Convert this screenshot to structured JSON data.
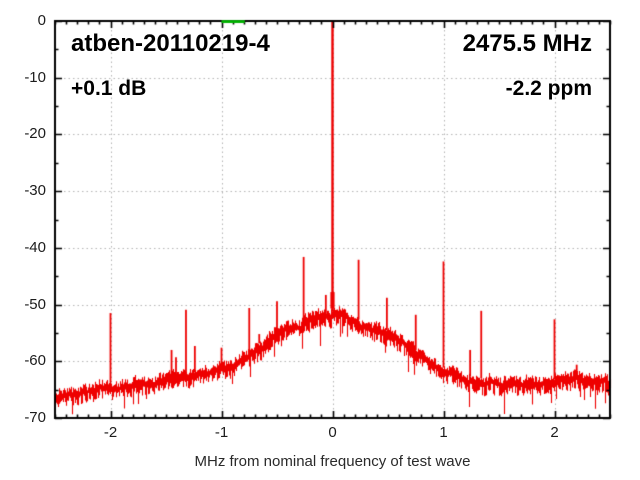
{
  "header": {
    "device_id": "atben-20110219-4",
    "frequency": "2475.5 MHz",
    "level_offset": "+0.1 dB",
    "ppm_offset": "-2.2 ppm"
  },
  "chart_data": {
    "type": "line",
    "title": "atben-20110219-4",
    "subtitle_right": "2475.5 MHz",
    "annotation_left": "+0.1 dB",
    "annotation_right": "-2.2 ppm",
    "xlabel": "MHz from nominal frequency of test wave",
    "ylabel": "",
    "xlim": [
      -2.5,
      2.5
    ],
    "ylim": [
      -70,
      0
    ],
    "x_ticks": [
      -2,
      -1,
      0,
      1,
      2
    ],
    "y_ticks": [
      0,
      -10,
      -20,
      -30,
      -40,
      -50,
      -60,
      -70
    ],
    "x_minor_tick_step": 0.1,
    "y_minor_tick_step": 5,
    "grid": true,
    "legend_position": "none",
    "trace_color": "#ee0000",
    "grid_color": "#b4b4b4",
    "axis_color": "#000000",
    "background_color": "#ffffff",
    "reference_marker": {
      "x1_mhz": -1.0,
      "x2_mhz": -0.79,
      "level_db": 0,
      "color": "#00b400"
    },
    "carrier": {
      "x_mhz": 0.0,
      "peak_db": 0.0,
      "pedestal_db": -47.8
    },
    "spurs": [
      [
        -2.0,
        -51.5
      ],
      [
        -1.45,
        -58.0
      ],
      [
        -1.41,
        -59.3
      ],
      [
        -1.32,
        -50.9
      ],
      [
        -1.24,
        -57.3
      ],
      [
        -1.0,
        -57.6
      ],
      [
        -0.75,
        -50.6
      ],
      [
        -0.66,
        -55.2
      ],
      [
        -0.5,
        -49.4
      ],
      [
        -0.26,
        -41.6
      ],
      [
        -0.06,
        -48.3
      ],
      [
        0.07,
        -50.9
      ],
      [
        0.235,
        -42.1
      ],
      [
        0.49,
        -48.8
      ],
      [
        0.75,
        -51.8
      ],
      [
        1.0,
        -42.4
      ],
      [
        1.24,
        -58.0
      ],
      [
        1.34,
        -51.1
      ],
      [
        2.0,
        -52.6
      ],
      [
        2.2,
        -60.6
      ]
    ],
    "noise_floor_envelope": [
      [
        -2.5,
        -66.4
      ],
      [
        -2.35,
        -65.6
      ],
      [
        -2.2,
        -64.9
      ],
      [
        -2.05,
        -64.3
      ],
      [
        -1.9,
        -64.0
      ],
      [
        -1.75,
        -63.7
      ],
      [
        -1.6,
        -63.4
      ],
      [
        -1.45,
        -63.2
      ],
      [
        -1.3,
        -62.8
      ],
      [
        -1.15,
        -62.0
      ],
      [
        -1.0,
        -61.2
      ],
      [
        -0.9,
        -60.3
      ],
      [
        -0.8,
        -59.2
      ],
      [
        -0.7,
        -57.9
      ],
      [
        -0.6,
        -56.5
      ],
      [
        -0.5,
        -55.2
      ],
      [
        -0.4,
        -54.2
      ],
      [
        -0.3,
        -53.4
      ],
      [
        -0.2,
        -52.8
      ],
      [
        -0.1,
        -52.4
      ],
      [
        0.0,
        -52.2
      ],
      [
        0.1,
        -52.5
      ],
      [
        0.2,
        -52.9
      ],
      [
        0.3,
        -53.6
      ],
      [
        0.4,
        -54.4
      ],
      [
        0.5,
        -55.1
      ],
      [
        0.6,
        -56.4
      ],
      [
        0.7,
        -57.8
      ],
      [
        0.8,
        -59.2
      ],
      [
        0.9,
        -60.6
      ],
      [
        1.0,
        -61.6
      ],
      [
        1.1,
        -62.5
      ],
      [
        1.2,
        -63.1
      ],
      [
        1.35,
        -63.5
      ],
      [
        1.5,
        -63.7
      ],
      [
        1.7,
        -63.8
      ],
      [
        1.85,
        -63.7
      ],
      [
        2.0,
        -63.7
      ],
      [
        2.15,
        -63.4
      ],
      [
        2.3,
        -63.8
      ],
      [
        2.5,
        -64.0
      ]
    ],
    "noise_band_halfwidth_db": 1.1
  }
}
